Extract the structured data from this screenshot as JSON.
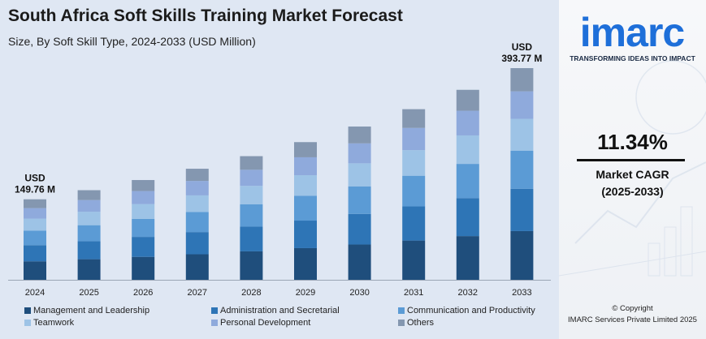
{
  "header": {
    "title": "South Africa Soft Skills Training Market Forecast",
    "subtitle": "Size, By Soft Skill Type, 2024-2033 (USD Million)"
  },
  "chart_data": {
    "type": "bar",
    "stacked": true,
    "categories": [
      "2024",
      "2025",
      "2026",
      "2027",
      "2028",
      "2029",
      "2030",
      "2031",
      "2032",
      "2033"
    ],
    "totals": [
      149.76,
      166.7,
      185.6,
      206.6,
      230.0,
      256.1,
      285.1,
      317.4,
      353.4,
      393.77
    ],
    "series": [
      {
        "name": "Management and Leadership",
        "color": "#1f4e7c",
        "values": [
          34.4,
          38.3,
          42.7,
          47.5,
          52.9,
          58.9,
          65.6,
          73.0,
          81.3,
          90.6
        ]
      },
      {
        "name": "Administration and Secretarial",
        "color": "#2e75b6",
        "values": [
          30.0,
          33.3,
          37.1,
          41.3,
          46.0,
          51.2,
          57.0,
          63.5,
          70.7,
          78.8
        ]
      },
      {
        "name": "Communication and Productivity",
        "color": "#5b9bd5",
        "values": [
          26.9,
          30.0,
          33.4,
          37.2,
          41.4,
          46.1,
          51.3,
          57.1,
          63.6,
          70.9
        ]
      },
      {
        "name": "Teamwork",
        "color": "#9dc3e6",
        "values": [
          22.5,
          25.0,
          27.8,
          31.0,
          34.5,
          38.4,
          42.8,
          47.6,
          53.0,
          59.1
        ]
      },
      {
        "name": "Personal Development",
        "color": "#8faadc",
        "values": [
          19.5,
          21.7,
          24.1,
          26.9,
          29.9,
          33.3,
          37.1,
          41.3,
          45.9,
          51.2
        ]
      },
      {
        "name": "Others",
        "color": "#8497b0",
        "values": [
          16.46,
          18.4,
          20.5,
          22.7,
          25.3,
          28.2,
          31.3,
          34.9,
          38.9,
          43.17
        ]
      }
    ],
    "data_labels": [
      {
        "category": "2024",
        "prefix": "USD",
        "value": "149.76 M"
      },
      {
        "category": "2033",
        "prefix": "USD",
        "value": "393.77 M"
      }
    ],
    "xlabel": "",
    "ylabel": "",
    "legend_position": "bottom",
    "grid": false
  },
  "sidebar": {
    "logo_text": "imarc",
    "tagline": "TRANSFORMING IDEAS INTO IMPACT",
    "cagr_value": "11.34%",
    "cagr_label": "Market CAGR",
    "cagr_period": "(2025-2033)",
    "copyright": "© Copyright",
    "copyright_owner": "IMARC Services Private Limited 2025"
  },
  "colors": {
    "panel_background": "#dfe7f3",
    "brand_blue": "#1e6fd9"
  }
}
